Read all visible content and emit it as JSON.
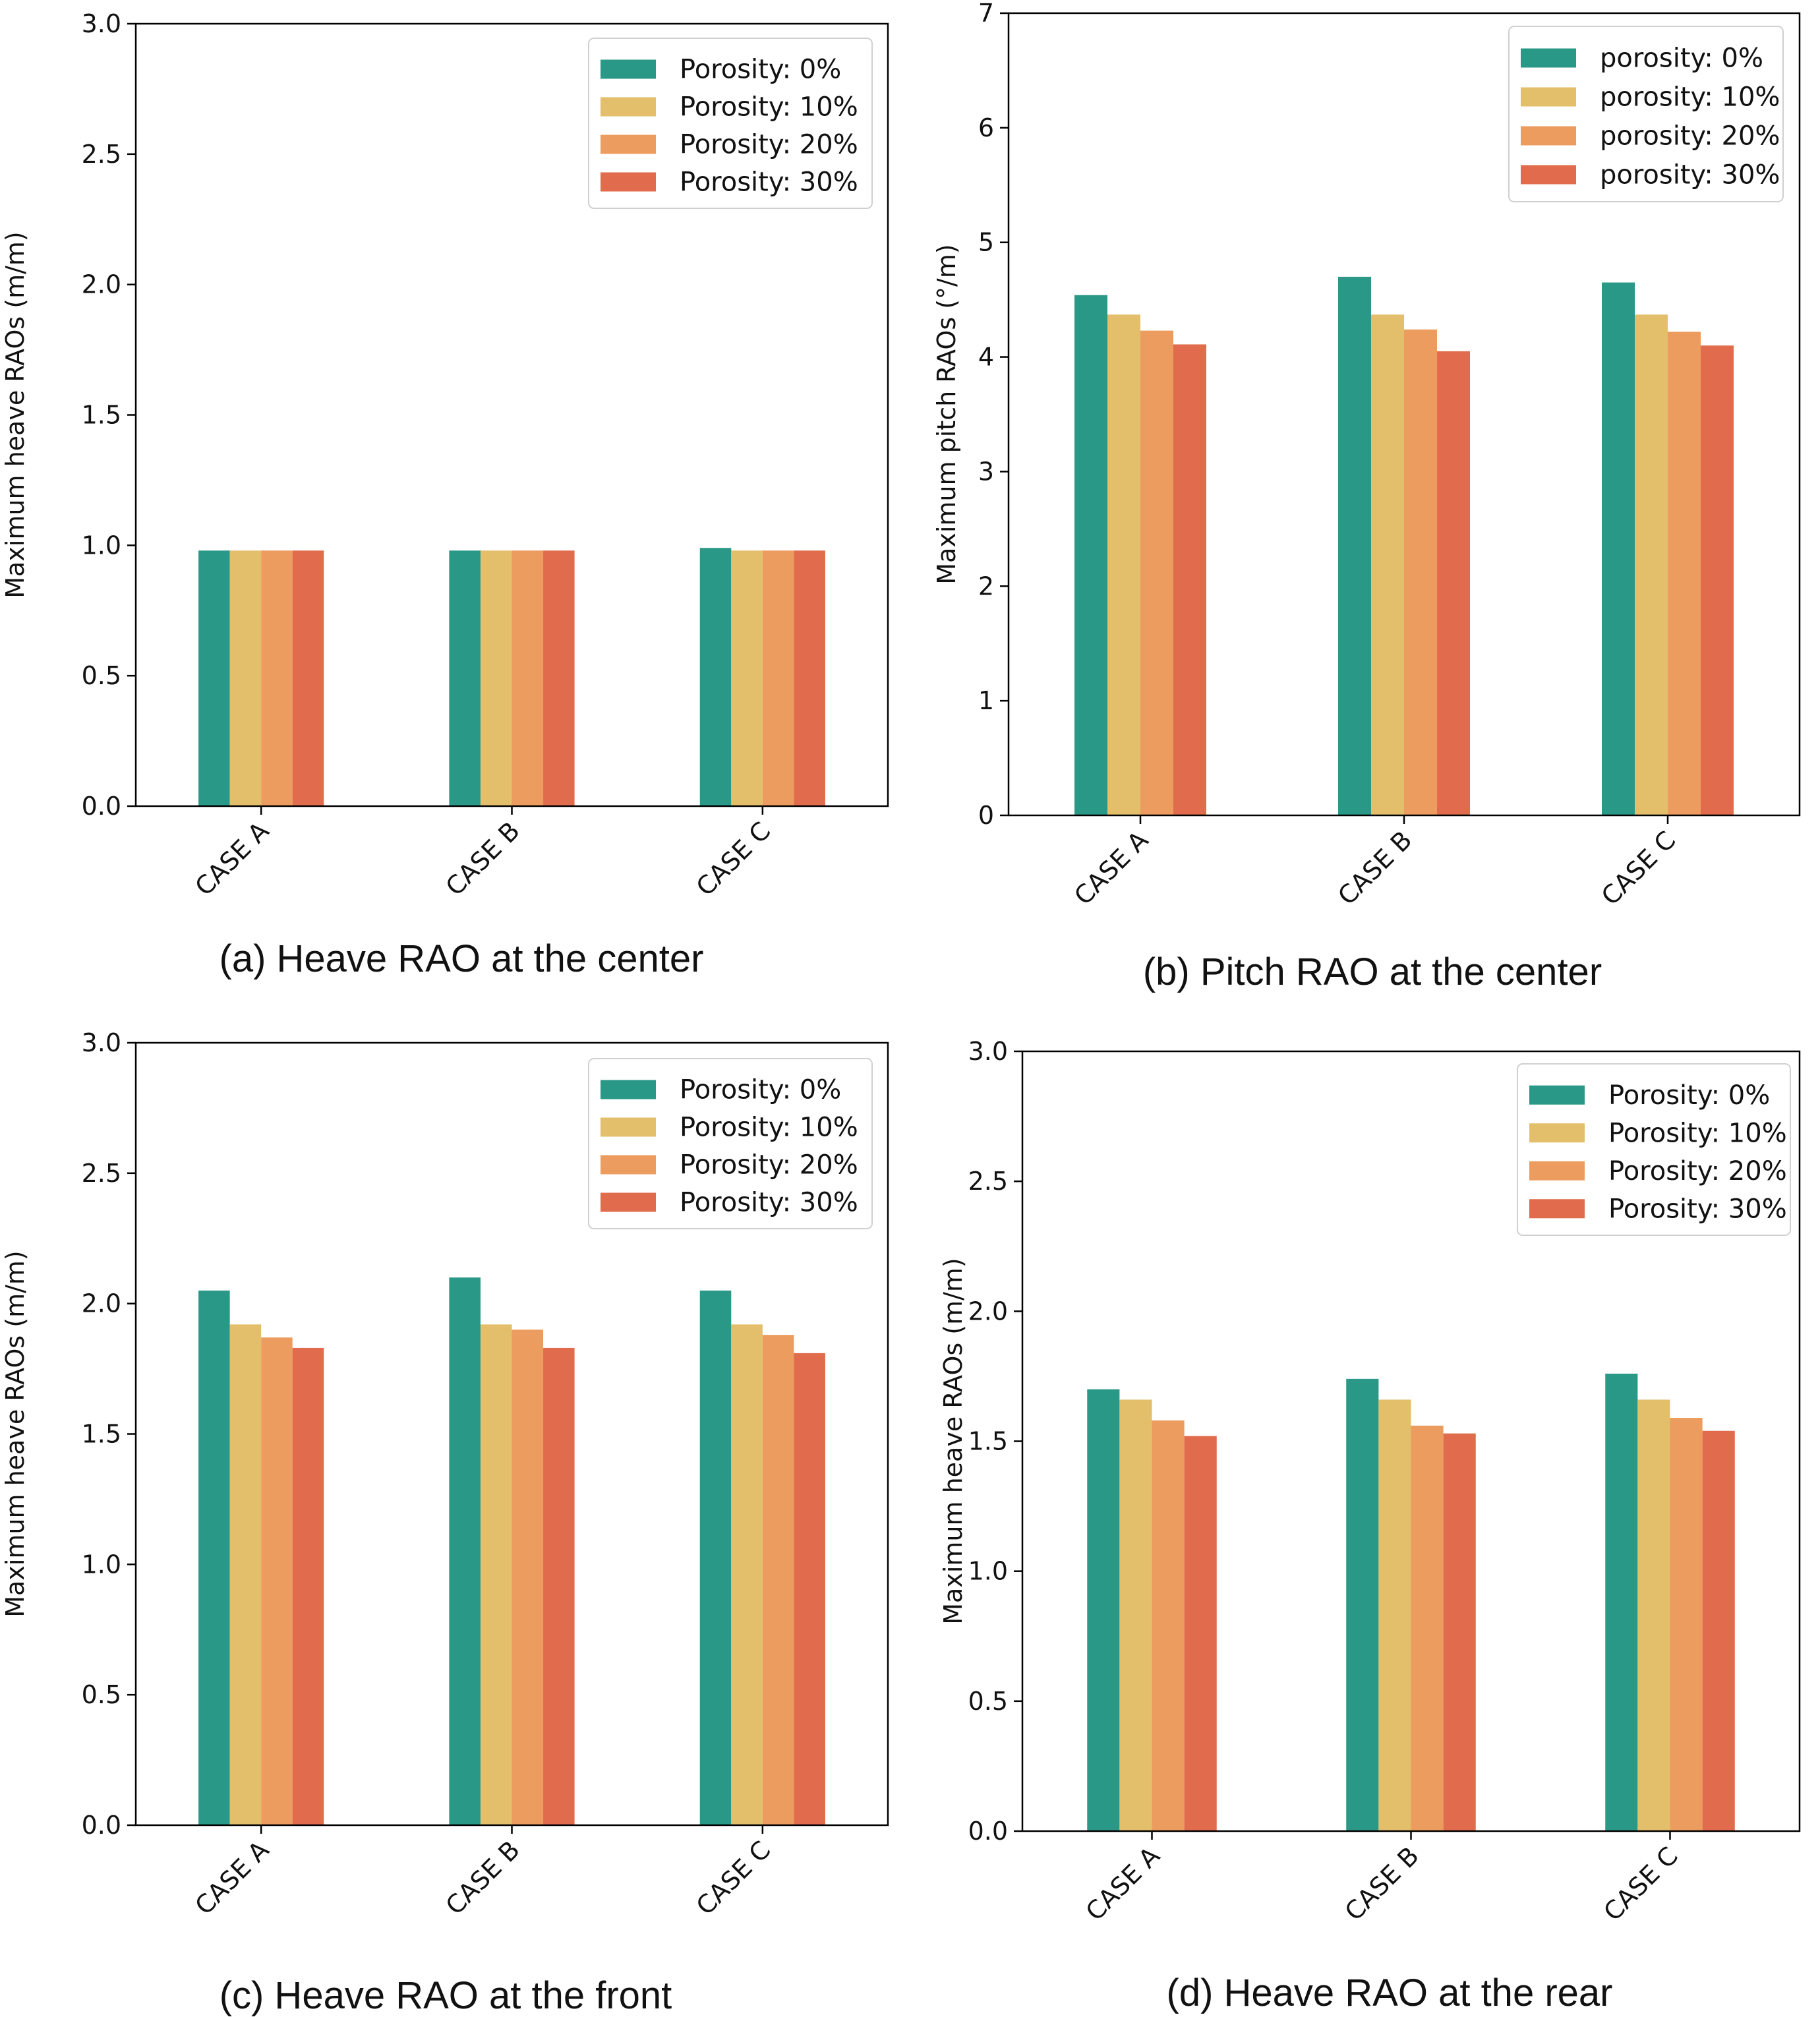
{
  "figure": {
    "colors": [
      "#2a9886",
      "#e3bf6c",
      "#ec9c5e",
      "#e06c4d"
    ],
    "categories": [
      "CASE A",
      "CASE B",
      "CASE C"
    ]
  },
  "chart_data": [
    {
      "id": "a",
      "type": "bar",
      "caption": "(a) Heave RAO at the center",
      "title": "",
      "xlabel": "",
      "ylabel": "Maximum heave RAOs (m/m)",
      "ylim": [
        0,
        3.0
      ],
      "yticks": [
        "0.0",
        "0.5",
        "1.0",
        "1.5",
        "2.0",
        "2.5",
        "3.0"
      ],
      "categories": [
        "CASE A",
        "CASE B",
        "CASE C"
      ],
      "legend_position": "top-right",
      "series": [
        {
          "name": "Porosity: 0%",
          "values": [
            0.98,
            0.98,
            0.99
          ]
        },
        {
          "name": "Porosity: 10%",
          "values": [
            0.98,
            0.98,
            0.98
          ]
        },
        {
          "name": "Porosity: 20%",
          "values": [
            0.98,
            0.98,
            0.98
          ]
        },
        {
          "name": "Porosity: 30%",
          "values": [
            0.98,
            0.98,
            0.98
          ]
        }
      ]
    },
    {
      "id": "b",
      "type": "bar",
      "caption": "(b) Pitch RAO at the center",
      "title": "",
      "xlabel": "",
      "ylabel": "Maximum pitch RAOs (°/m)",
      "ylim": [
        0,
        7
      ],
      "yticks": [
        "0",
        "1",
        "2",
        "3",
        "4",
        "5",
        "6",
        "7"
      ],
      "categories": [
        "CASE A",
        "CASE B",
        "CASE C"
      ],
      "legend_position": "top-right",
      "series": [
        {
          "name": "porosity: 0%",
          "values": [
            4.54,
            4.7,
            4.65
          ]
        },
        {
          "name": "porosity: 10%",
          "values": [
            4.37,
            4.37,
            4.37
          ]
        },
        {
          "name": "porosity: 20%",
          "values": [
            4.23,
            4.24,
            4.22
          ]
        },
        {
          "name": "porosity: 30%",
          "values": [
            4.11,
            4.05,
            4.1
          ]
        }
      ]
    },
    {
      "id": "c",
      "type": "bar",
      "caption": "(c) Heave RAO at the front",
      "title": "",
      "xlabel": "",
      "ylabel": "Maximum heave RAOs (m/m)",
      "ylim": [
        0,
        3.0
      ],
      "yticks": [
        "0.0",
        "0.5",
        "1.0",
        "1.5",
        "2.0",
        "2.5",
        "3.0"
      ],
      "categories": [
        "CASE A",
        "CASE B",
        "CASE C"
      ],
      "legend_position": "top-right",
      "series": [
        {
          "name": "Porosity: 0%",
          "values": [
            2.05,
            2.1,
            2.05
          ]
        },
        {
          "name": "Porosity: 10%",
          "values": [
            1.92,
            1.92,
            1.92
          ]
        },
        {
          "name": "Porosity: 20%",
          "values": [
            1.87,
            1.9,
            1.88
          ]
        },
        {
          "name": "Porosity: 30%",
          "values": [
            1.83,
            1.83,
            1.81
          ]
        }
      ]
    },
    {
      "id": "d",
      "type": "bar",
      "caption": "(d) Heave RAO at the rear",
      "title": "",
      "xlabel": "",
      "ylabel": "Maximum heave RAOs (m/m)",
      "ylim": [
        0,
        3.0
      ],
      "yticks": [
        "0.0",
        "0.5",
        "1.0",
        "1.5",
        "2.0",
        "2.5",
        "3.0"
      ],
      "categories": [
        "CASE A",
        "CASE B",
        "CASE C"
      ],
      "legend_position": "top-right",
      "series": [
        {
          "name": "Porosity: 0%",
          "values": [
            1.7,
            1.74,
            1.76
          ]
        },
        {
          "name": "Porosity: 10%",
          "values": [
            1.66,
            1.66,
            1.66
          ]
        },
        {
          "name": "Porosity: 20%",
          "values": [
            1.58,
            1.56,
            1.59
          ]
        },
        {
          "name": "Porosity: 30%",
          "values": [
            1.52,
            1.53,
            1.54
          ]
        }
      ]
    }
  ]
}
